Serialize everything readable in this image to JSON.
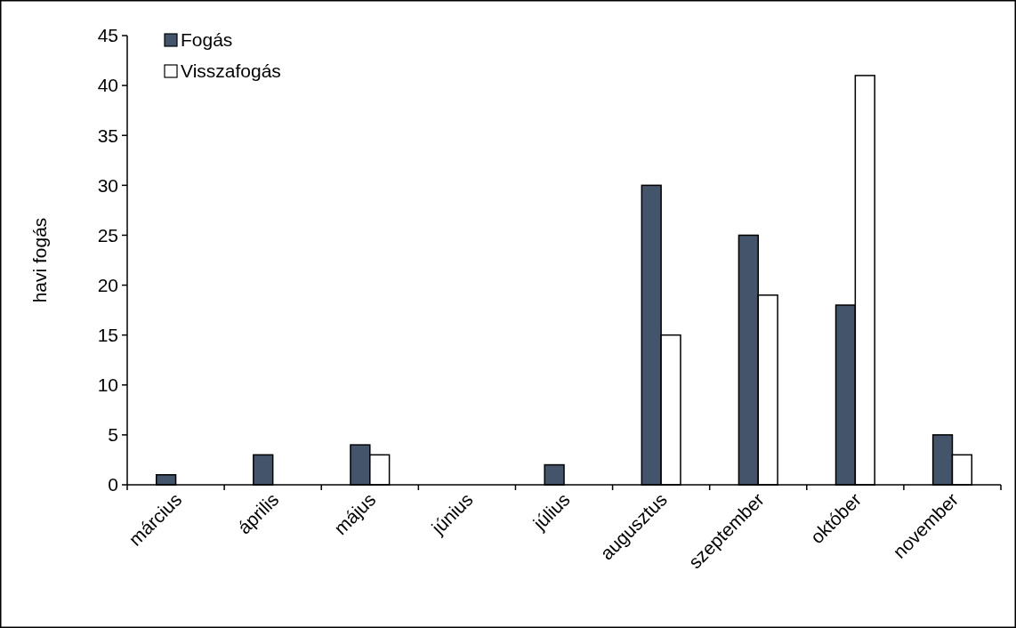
{
  "chart_data": {
    "type": "bar",
    "ylabel": "havi fogás",
    "categories": [
      "március",
      "április",
      "május",
      "június",
      "július",
      "augusztus",
      "szeptember",
      "október",
      "november"
    ],
    "series": [
      {
        "name": "Fogás",
        "color": "#44546a",
        "values": [
          1,
          3,
          4,
          0,
          2,
          30,
          25,
          18,
          5
        ]
      },
      {
        "name": "Visszafogás",
        "color": "#ffffff",
        "values": [
          0,
          0,
          3,
          0,
          0,
          15,
          19,
          41,
          3
        ]
      }
    ],
    "ylim": [
      0,
      45
    ],
    "yticks": [
      0,
      5,
      10,
      15,
      20,
      25,
      30,
      35,
      40,
      45
    ],
    "grid": false,
    "legend": "top left"
  }
}
